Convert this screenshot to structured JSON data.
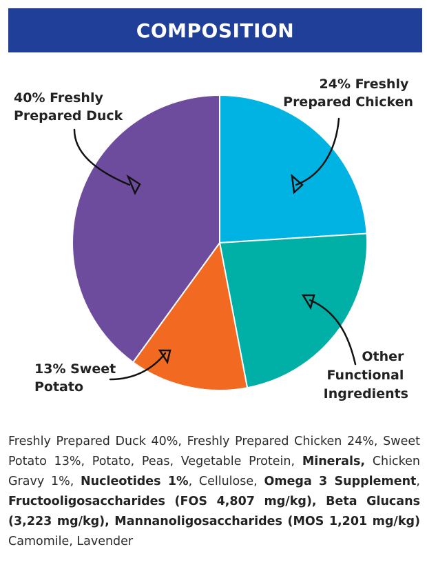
{
  "header": {
    "title": "COMPOSITION",
    "background": "#1f3f98"
  },
  "chart_data": {
    "type": "pie",
    "slices": [
      {
        "label": "24% Freshly Prepared Chicken",
        "value": 24,
        "color": "#00b3e3"
      },
      {
        "label": "Other Functional Ingredients",
        "value": 23,
        "color": "#00afa6"
      },
      {
        "label": "13% Sweet Potato",
        "value": 13,
        "color": "#f26a22"
      },
      {
        "label": "40% Freshly Prepared Duck",
        "value": 40,
        "color": "#6d4c9e"
      }
    ]
  },
  "composition": [
    {
      "text": "Freshly Prepared Duck 40%, Freshly Prepared Chicken 24%, Sweet Potato 13%, Potato, Peas, Vegetable Protein, ",
      "bold": false
    },
    {
      "text": "Minerals,",
      "bold": true
    },
    {
      "text": " Chicken Gravy 1%, ",
      "bold": false
    },
    {
      "text": "Nucleotides 1%",
      "bold": true
    },
    {
      "text": ", Cellulose, ",
      "bold": false
    },
    {
      "text": "Omega 3 Supplement",
      "bold": true
    },
    {
      "text": ", ",
      "bold": false
    },
    {
      "text": "Fructooligosaccharides (FOS 4,807 mg/kg), Beta Glucans (3,223 mg/kg), Mannanoligosaccharides (MOS 1,201 mg/kg)",
      "bold": true
    },
    {
      "text": " Camomile, Lavender",
      "bold": false
    }
  ]
}
